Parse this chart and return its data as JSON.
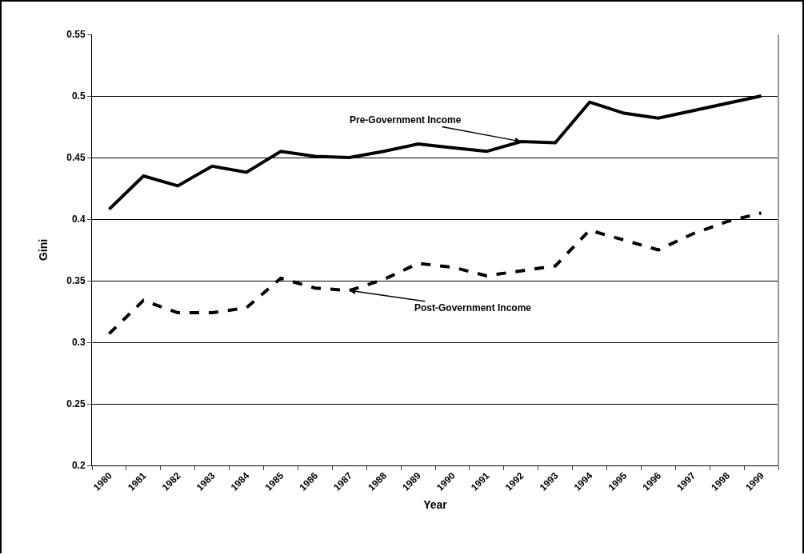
{
  "chart_data": {
    "type": "line",
    "xlabel": "Year",
    "ylabel": "Gini",
    "categories": [
      "1980",
      "1981",
      "1982",
      "1983",
      "1984",
      "1985",
      "1986",
      "1987",
      "1988",
      "1989",
      "1990",
      "1991",
      "1992",
      "1993",
      "1994",
      "1995",
      "1996",
      "1997",
      "1998",
      "1999"
    ],
    "series": [
      {
        "color": "#000000",
        "line_style": "solid",
        "values": [
          0.408,
          0.435,
          0.427,
          0.443,
          0.438,
          0.455,
          0.451,
          0.45,
          0.455,
          0.461,
          0.458,
          0.455,
          0.463,
          0.462,
          0.495,
          0.486,
          0.482,
          0.488,
          0.494,
          0.5
        ]
      },
      {
        "color": "#000000",
        "line_style": "dashed",
        "values": [
          0.307,
          0.334,
          0.324,
          0.324,
          0.328,
          0.352,
          0.344,
          0.342,
          0.351,
          0.364,
          0.361,
          0.354,
          0.358,
          0.362,
          0.391,
          0.383,
          0.375,
          0.388,
          0.398,
          0.405
        ]
      }
    ],
    "ylim": [
      0.2,
      0.55
    ],
    "yticks": [
      0.2,
      0.25,
      0.3,
      0.35,
      0.4,
      0.45,
      0.5,
      0.55
    ],
    "grid": "y",
    "marker": "none",
    "annotations": [
      {
        "text": "Pre-Government Income",
        "x": "1992",
        "y": 0.463
      },
      {
        "text": "Post-Government Income",
        "x": "1987",
        "y": 0.342
      }
    ]
  }
}
